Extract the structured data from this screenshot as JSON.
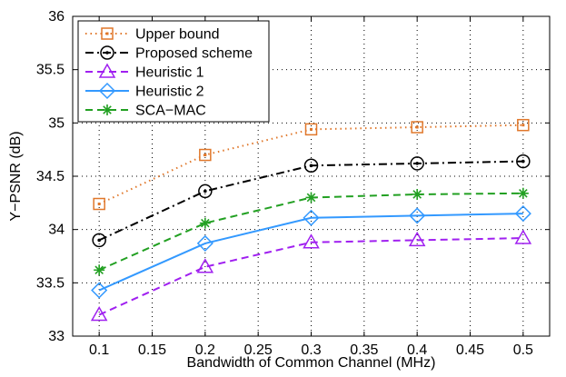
{
  "chart_data": {
    "type": "line",
    "title": "",
    "xlabel": "Bandwidth of Common Channel (MHz)",
    "ylabel": "Y−PSNR (dB)",
    "xlim": [
      0.075,
      0.525
    ],
    "ylim": [
      33,
      36
    ],
    "xticks": [
      "0.1",
      "0.15",
      "0.2",
      "0.25",
      "0.3",
      "0.35",
      "0.4",
      "0.45",
      "0.5"
    ],
    "yticks": [
      "33",
      "33.5",
      "34",
      "34.5",
      "35",
      "35.5",
      "36"
    ],
    "grid": true,
    "legend_position": "top-left",
    "x": [
      0.1,
      0.2,
      0.3,
      0.4,
      0.5
    ],
    "series": [
      {
        "name": "Upper bound",
        "values": [
          34.24,
          34.7,
          34.94,
          34.96,
          34.98
        ],
        "color": "#E0772A",
        "line_style": "dotted",
        "marker": "square"
      },
      {
        "name": "Proposed scheme",
        "values": [
          33.9,
          34.36,
          34.6,
          34.62,
          34.64
        ],
        "color": "#000000",
        "line_style": "dash-dot",
        "marker": "circle"
      },
      {
        "name": "Heuristic 1",
        "values": [
          33.2,
          33.65,
          33.88,
          33.9,
          33.92
        ],
        "color": "#A020F0",
        "line_style": "dashed",
        "marker": "triangle"
      },
      {
        "name": "Heuristic 2",
        "values": [
          33.43,
          33.87,
          34.11,
          34.13,
          34.15
        ],
        "color": "#3399FF",
        "line_style": "solid",
        "marker": "diamond"
      },
      {
        "name": "SCA−MAC",
        "values": [
          33.62,
          34.06,
          34.3,
          34.33,
          34.34
        ],
        "color": "#22A022",
        "line_style": "dashed",
        "marker": "star"
      }
    ]
  }
}
